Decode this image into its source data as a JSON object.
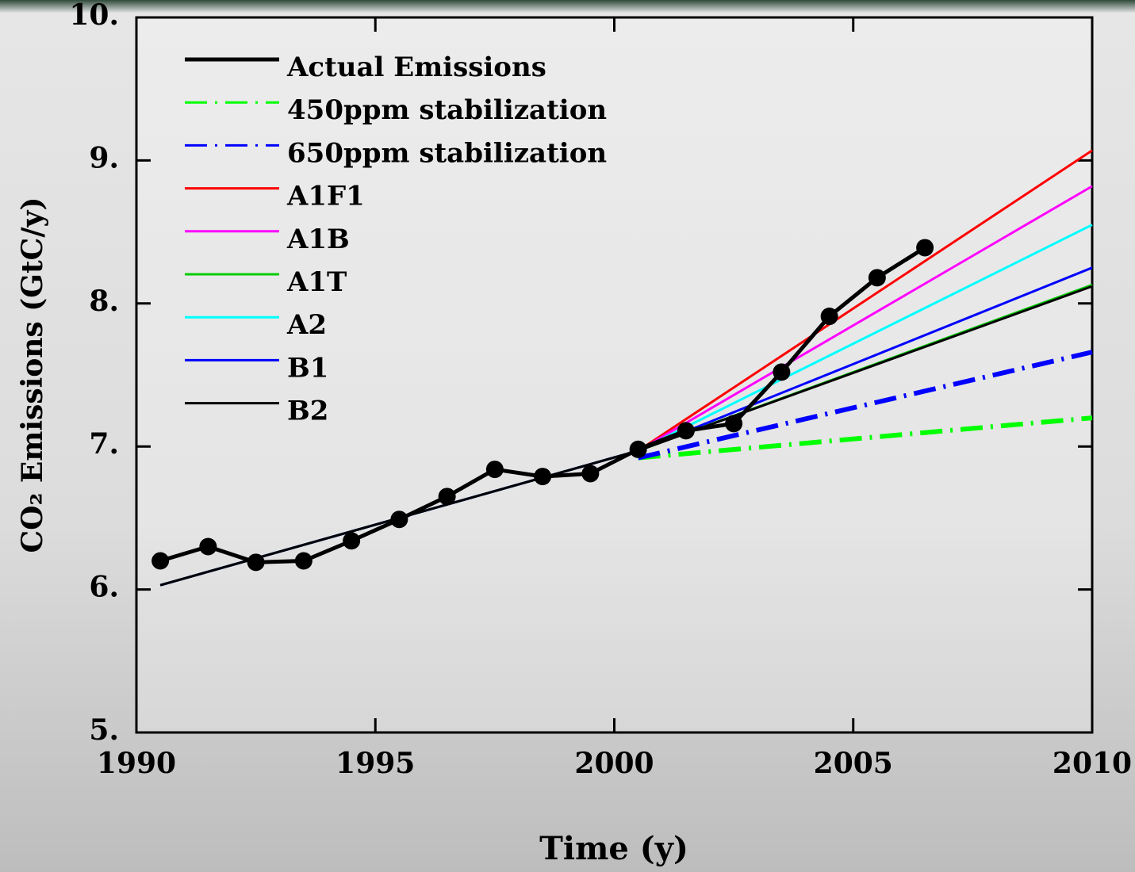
{
  "chart_data": {
    "type": "line",
    "xlabel": "Time (y)",
    "ylabel": "CO₂ Emissions (GtC/y)",
    "xlim": [
      1990,
      2010
    ],
    "ylim": [
      5,
      10
    ],
    "xticks": [
      1990,
      1995,
      2000,
      2005,
      2010
    ],
    "yticks": [
      {
        "value": 5,
        "label": "5."
      },
      {
        "value": 6,
        "label": "6."
      },
      {
        "value": 7,
        "label": "7."
      },
      {
        "value": 8,
        "label": "8."
      },
      {
        "value": 9,
        "label": "9."
      },
      {
        "value": 10,
        "label": "10."
      }
    ],
    "legend": "upper left",
    "series": [
      {
        "name": "Actual Emissions",
        "color": "#000000",
        "style": "solid-markers",
        "x": [
          1990.5,
          1991.5,
          1992.5,
          1993.5,
          1994.5,
          1995.5,
          1996.5,
          1997.5,
          1998.5,
          1999.5,
          2000.5,
          2001.5,
          2002.5,
          2003.5,
          2004.5,
          2005.5,
          2006.5
        ],
        "values": [
          6.2,
          6.3,
          6.19,
          6.2,
          6.34,
          6.49,
          6.65,
          6.84,
          6.79,
          6.81,
          6.98,
          7.11,
          7.16,
          7.52,
          7.91,
          8.18,
          8.39
        ]
      },
      {
        "name": "450ppm stabilization",
        "color": "#00ff00",
        "style": "dashdot",
        "x": [
          2000.5,
          2010
        ],
        "values": [
          6.92,
          7.2
        ]
      },
      {
        "name": "650ppm stabilization",
        "color": "#0000ff",
        "style": "dashdot",
        "x": [
          2000.5,
          2010
        ],
        "values": [
          6.92,
          7.66
        ]
      },
      {
        "name": "A1F1",
        "color": "#ff0000",
        "style": "solid",
        "x": [
          1990.5,
          2000.5,
          2010
        ],
        "values": [
          6.03,
          6.97,
          9.07
        ]
      },
      {
        "name": "A1B",
        "color": "#ff00ff",
        "style": "solid",
        "x": [
          1990.5,
          2000.5,
          2010
        ],
        "values": [
          6.03,
          6.97,
          8.82
        ]
      },
      {
        "name": "A1T",
        "color": "#00cc00",
        "style": "solid",
        "x": [
          1990.5,
          2000.5,
          2010
        ],
        "values": [
          6.03,
          6.97,
          8.13
        ]
      },
      {
        "name": "A2",
        "color": "#00ffff",
        "style": "solid",
        "x": [
          1990.5,
          2000.5,
          2010
        ],
        "values": [
          6.03,
          6.97,
          8.55
        ]
      },
      {
        "name": "B1",
        "color": "#0000ff",
        "style": "solid",
        "x": [
          1990.5,
          2000.5,
          2010
        ],
        "values": [
          6.03,
          6.97,
          8.25
        ]
      },
      {
        "name": "B2",
        "color": "#000000",
        "style": "solid",
        "x": [
          1990.5,
          2000.5,
          2010
        ],
        "values": [
          6.03,
          6.97,
          8.12
        ]
      }
    ]
  }
}
